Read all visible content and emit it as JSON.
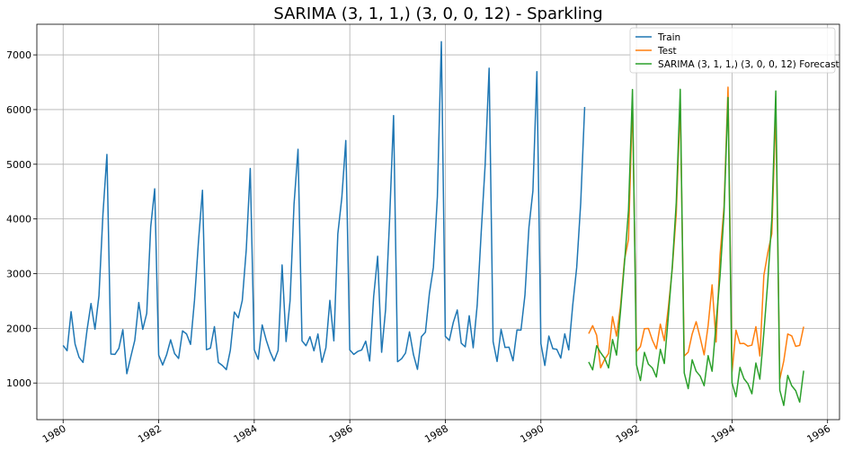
{
  "chart_data": {
    "type": "line",
    "title": "SARIMA (3, 1, 1,) (3, 0, 0, 12) - Sparkling",
    "xlabel": "",
    "ylabel": "",
    "xlim": [
      1979.45,
      1996.25
    ],
    "ylim": [
      330,
      7560
    ],
    "grid": true,
    "legend_position": "top-right",
    "x_ticks": [
      1980,
      1982,
      1984,
      1986,
      1988,
      1990,
      1992,
      1994,
      1996
    ],
    "y_ticks": [
      1000,
      2000,
      3000,
      4000,
      5000,
      6000,
      7000
    ],
    "series": [
      {
        "name": "Train",
        "color": "#1f77b4",
        "start": 1980.0,
        "step": 0.08333,
        "values": [
          1686,
          1591,
          2304,
          1712,
          1471,
          1377,
          1966,
          2453,
          1984,
          2596,
          4087,
          5179,
          1530,
          1523,
          1633,
          1976,
          1170,
          1480,
          1781,
          2472,
          1981,
          2273,
          3857,
          4551,
          1510,
          1329,
          1518,
          1790,
          1537,
          1449,
          1954,
          1897,
          1706,
          2514,
          3593,
          4524,
          1609,
          1638,
          2030,
          1375,
          1320,
          1245,
          1600,
          2298,
          2191,
          2511,
          3440,
          4923,
          1609,
          1435,
          2061,
          1789,
          1567,
          1404,
          1597,
          3159,
          1759,
          2504,
          4273,
          5274,
          1771,
          1682,
          1846,
          1589,
          1896,
          1379,
          1645,
          2512,
          1771,
          3727,
          4388,
          5434,
          1606,
          1523,
          1577,
          1605,
          1765,
          1403,
          2584,
          3318,
          1562,
          2349,
          3987,
          5891,
          1389,
          1442,
          1548,
          1935,
          1518,
          1250,
          1847,
          1930,
          2638,
          3114,
          4405,
          7242,
          1853,
          1779,
          2108,
          2336,
          1728,
          1661,
          2230,
          1645,
          2421,
          3740,
          4988,
          6757,
          1757,
          1394,
          1982,
          1650,
          1654,
          1406,
          1971,
          1968,
          2608,
          3845,
          4514,
          6694,
          1720,
          1321,
          1859,
          1628,
          1615,
          1457,
          1899,
          1605,
          2424,
          3116,
          4286,
          6047
        ]
      },
      {
        "name": "Test",
        "color": "#ff7f0e",
        "start": 1991.0,
        "step": 0.08333,
        "values": [
          1902,
          2049,
          1874,
          1279,
          1432,
          1540,
          2214,
          1857,
          2408,
          3252,
          3627,
          6153,
          1577,
          1667,
          1993,
          1997,
          1783,
          1625,
          2076,
          1773,
          2377,
          3088,
          4096,
          6119,
          1494,
          1564,
          1898,
          2121,
          1831,
          1515,
          2048,
          2795,
          1749,
          3339,
          4227,
          6410,
          1197,
          1968,
          1720,
          1725,
          1674,
          1693,
          2031,
          1495,
          2968,
          3385,
          3729,
          5999,
          1070,
          1402,
          1897,
          1862,
          1670,
          1688,
          2031
        ]
      },
      {
        "name": "SARIMA (3, 1, 1,) (3, 0, 0, 12) Forecast",
        "color": "#2ca02c",
        "start": 1991.0,
        "step": 0.08333,
        "values": [
          1385,
          1241,
          1681,
          1555,
          1455,
          1276,
          1795,
          1510,
          2316,
          3200,
          4155,
          6366,
          1335,
          1045,
          1561,
          1345,
          1275,
          1110,
          1615,
          1356,
          2215,
          3130,
          4300,
          6370,
          1185,
          897,
          1425,
          1214,
          1128,
          950,
          1500,
          1215,
          2090,
          2960,
          4120,
          6220,
          1005,
          748,
          1285,
          1080,
          986,
          803,
          1365,
          1070,
          1920,
          2870,
          4000,
          6340,
          870,
          590,
          1140,
          950,
          860,
          650,
          1225
        ]
      }
    ]
  }
}
